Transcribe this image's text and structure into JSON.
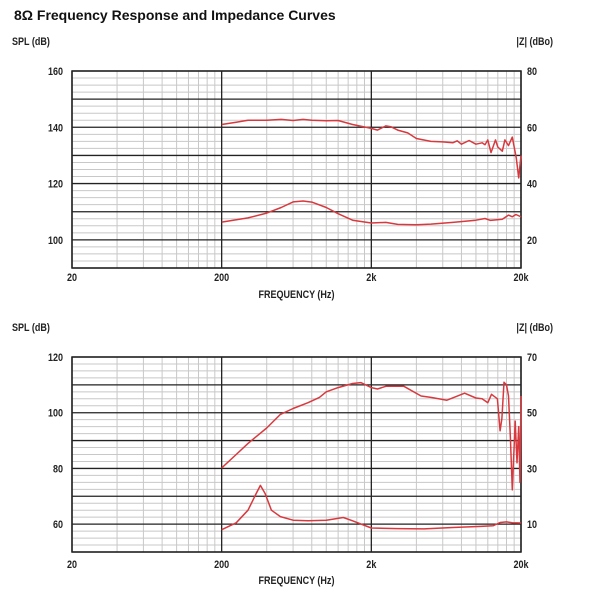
{
  "title": "8Ω Frequency Response and Impedance Curves",
  "colors": {
    "curve": "#d9393e",
    "major_grid": "#222222",
    "minor_grid": "#c8c8c8"
  },
  "chart_data": [
    {
      "type": "line",
      "xlabel": "FREQUENCY (Hz)",
      "ylabel": "SPL (dB)",
      "y2label": "|Z| (dBo)",
      "xscale": "log",
      "xlim": [
        20,
        20000
      ],
      "xticks": [
        {
          "v": 20,
          "label": "20"
        },
        {
          "v": 200,
          "label": "200"
        },
        {
          "v": 2000,
          "label": "2k"
        },
        {
          "v": 20000,
          "label": "20k"
        }
      ],
      "ylim": [
        90,
        160
      ],
      "yticks": [
        "160",
        "140",
        "120",
        "100"
      ],
      "y2lim": [
        10,
        80
      ],
      "y2ticks": [
        "80",
        "60",
        "40",
        "20"
      ],
      "grid": true,
      "series": [
        {
          "axis": "left",
          "x": [
            200,
            250,
            300,
            400,
            500,
            600,
            700,
            800,
            1000,
            1200,
            1500,
            2000,
            2200,
            2500,
            2700,
            3000,
            3500,
            4000,
            5000,
            6000,
            7000,
            7500,
            8000,
            9000,
            10000,
            11000,
            11500,
            12000,
            12600,
            13000,
            13500,
            14000,
            15000,
            15600,
            16500,
            17500,
            18600,
            19300,
            20000
          ],
          "y": [
            141,
            141.8,
            142.5,
            142.5,
            142.8,
            142.4,
            142.8,
            142.5,
            142.3,
            142.4,
            141,
            139.6,
            139,
            140.5,
            140.2,
            139,
            138,
            136,
            135,
            134.8,
            134.5,
            135.2,
            134,
            135.3,
            134,
            134.5,
            133.8,
            135.5,
            131,
            133,
            135.5,
            133,
            131.5,
            135.5,
            133.5,
            136.5,
            129,
            122,
            130
          ]
        },
        {
          "axis": "right",
          "x": [
            200,
            300,
            400,
            500,
            600,
            700,
            800,
            1000,
            1200,
            1500,
            2000,
            2500,
            3000,
            4000,
            5000,
            7000,
            10000,
            11500,
            12500,
            15000,
            16500,
            17500,
            18500,
            20000
          ],
          "y": [
            26.3,
            27.8,
            29.5,
            31.5,
            33.5,
            33.8,
            33.4,
            31.5,
            29.3,
            27,
            26,
            26.2,
            25.5,
            25.4,
            25.6,
            26.2,
            27,
            27.6,
            26.9,
            27.3,
            28.8,
            28.2,
            29,
            28.2
          ]
        }
      ]
    },
    {
      "type": "line",
      "xlabel": "FREQUENCY (Hz)",
      "ylabel": "SPL (dB)",
      "y2label": "|Z| (dBo)",
      "xscale": "log",
      "xlim": [
        20,
        20000
      ],
      "xticks": [
        {
          "v": 20,
          "label": "20"
        },
        {
          "v": 200,
          "label": "200"
        },
        {
          "v": 2000,
          "label": "2k"
        },
        {
          "v": 20000,
          "label": "20k"
        }
      ],
      "ylim": [
        50,
        120
      ],
      "yticks": [
        "120",
        "100",
        "80",
        "60"
      ],
      "y2lim": [
        0,
        70
      ],
      "y2ticks": [
        "70",
        "50",
        "30",
        "10"
      ],
      "grid": true,
      "series": [
        {
          "axis": "left",
          "x": [
            200,
            250,
            300,
            400,
            494,
            600,
            755,
            900,
            1000,
            1200,
            1500,
            1700,
            2000,
            2200,
            2500,
            3300,
            4300,
            5000,
            6400,
            8400,
            10000,
            11000,
            12000,
            12700,
            13900,
            14500,
            14900,
            15400,
            16000,
            16500,
            17000,
            17500,
            18300,
            18800,
            19300,
            19700,
            20000
          ],
          "y": [
            80.2,
            85,
            89,
            94.5,
            99.4,
            101.5,
            103.6,
            105.5,
            107.5,
            109,
            110.5,
            110.8,
            109,
            108.5,
            109.5,
            109.5,
            106,
            105.5,
            104.5,
            107,
            105.3,
            105,
            103.6,
            106.6,
            105,
            93.5,
            98,
            110.9,
            110,
            106,
            91,
            72.3,
            97,
            82,
            95,
            75,
            106
          ]
        },
        {
          "axis": "right",
          "x": [
            200,
            250,
            300,
            340,
            363,
            390,
            430,
            494,
            600,
            755,
            1000,
            1300,
            1500,
            2000,
            3000,
            4500,
            7000,
            10800,
            13000,
            14500,
            16000,
            17500,
            20000
          ],
          "y": [
            8,
            10.5,
            15,
            21,
            23.9,
            21,
            15,
            12.7,
            11.4,
            11.2,
            11.4,
            12.4,
            11.2,
            8.6,
            8.4,
            8.3,
            8.8,
            9.2,
            9.4,
            10.6,
            10.8,
            10.5,
            10.4
          ]
        }
      ]
    }
  ]
}
